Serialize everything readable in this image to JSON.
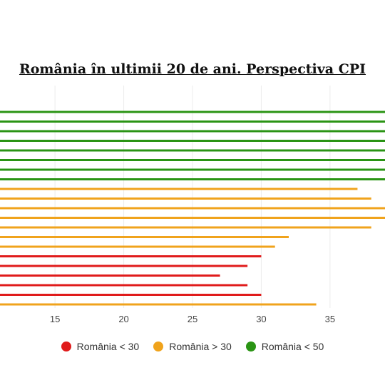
{
  "chart_data": {
    "type": "bar",
    "orientation": "horizontal",
    "title": "România în ultimii 20 de ani. Perspectiva CPI",
    "xlabel": "",
    "ylabel": "",
    "xlim": [
      11,
      39
    ],
    "xticks": [
      15,
      20,
      25,
      30,
      35
    ],
    "grid": true,
    "legend_position": "bottom",
    "series": [
      {
        "name": "România < 30",
        "color": "#e01b1b"
      },
      {
        "name": "România > 30",
        "color": "#f0a31c"
      },
      {
        "name": "România < 50",
        "color": "#2a9414"
      }
    ],
    "bars": [
      {
        "series": 2,
        "value": 39
      },
      {
        "series": 2,
        "value": 39
      },
      {
        "series": 2,
        "value": 39
      },
      {
        "series": 2,
        "value": 39
      },
      {
        "series": 2,
        "value": 39
      },
      {
        "series": 2,
        "value": 39
      },
      {
        "series": 2,
        "value": 39
      },
      {
        "series": 2,
        "value": 39
      },
      {
        "series": 1,
        "value": 37
      },
      {
        "series": 1,
        "value": 38
      },
      {
        "series": 1,
        "value": 39
      },
      {
        "series": 1,
        "value": 39
      },
      {
        "series": 1,
        "value": 38
      },
      {
        "series": 1,
        "value": 32
      },
      {
        "series": 1,
        "value": 31
      },
      {
        "series": 0,
        "value": 30
      },
      {
        "series": 0,
        "value": 29
      },
      {
        "series": 0,
        "value": 27
      },
      {
        "series": 0,
        "value": 29
      },
      {
        "series": 0,
        "value": 30
      },
      {
        "series": 1,
        "value": 34
      }
    ]
  }
}
